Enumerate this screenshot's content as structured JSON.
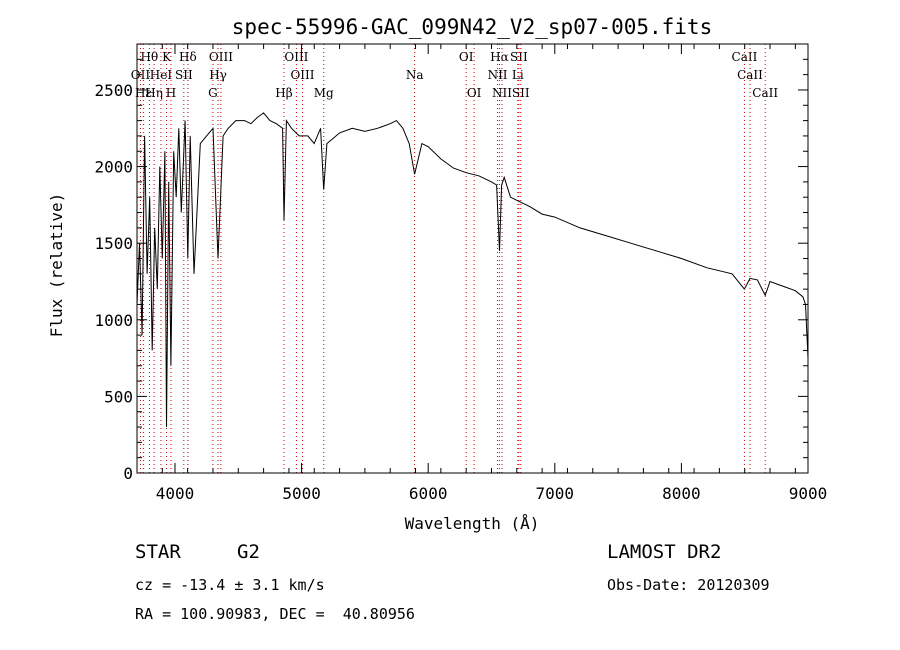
{
  "chart_data": {
    "type": "line",
    "title": "spec-55996-GAC_099N42_V2_sp07-005.fits",
    "xlabel": "Wavelength (Å)",
    "ylabel": "Flux (relative)",
    "xlim": [
      3700,
      9000
    ],
    "ylim": [
      0,
      2800
    ],
    "xticks": [
      4000,
      5000,
      6000,
      7000,
      8000,
      9000
    ],
    "yticks": [
      0,
      500,
      1000,
      1500,
      2000,
      2500
    ],
    "grid": false,
    "line_color": "#000000",
    "marker_color": "#cc0000",
    "series": [
      {
        "x": [
          3700,
          3720,
          3740,
          3760,
          3780,
          3800,
          3820,
          3840,
          3860,
          3880,
          3900,
          3920,
          3933,
          3950,
          3968,
          3990,
          4010,
          4030,
          4050,
          4080,
          4101,
          4120,
          4150,
          4200,
          4250,
          4300,
          4340,
          4380,
          4420,
          4480,
          4550,
          4600,
          4650,
          4700,
          4750,
          4800,
          4850,
          4861,
          4880,
          4920,
          4980,
          5050,
          5100,
          5150,
          5175,
          5200,
          5300,
          5400,
          5500,
          5600,
          5700,
          5750,
          5800,
          5850,
          5893,
          5950,
          6000,
          6100,
          6200,
          6300,
          6400,
          6500,
          6540,
          6563,
          6580,
          6600,
          6650,
          6700,
          6800,
          6900,
          7000,
          7200,
          7400,
          7600,
          7800,
          8000,
          8200,
          8400,
          8498,
          8542,
          8600,
          8662,
          8700,
          8800,
          8900,
          8960,
          8980,
          9000
        ],
        "y": [
          1100,
          1500,
          900,
          2200,
          1300,
          1800,
          800,
          1600,
          1200,
          2000,
          1400,
          2100,
          300,
          1900,
          700,
          2100,
          1800,
          2250,
          1700,
          2300,
          1400,
          2200,
          1300,
          2150,
          2200,
          2250,
          1400,
          2200,
          2250,
          2300,
          2300,
          2280,
          2320,
          2350,
          2300,
          2280,
          2250,
          1650,
          2300,
          2250,
          2200,
          2200,
          2150,
          2250,
          1850,
          2150,
          2220,
          2250,
          2230,
          2250,
          2280,
          2300,
          2250,
          2150,
          1950,
          2150,
          2130,
          2050,
          1990,
          1960,
          1940,
          1900,
          1880,
          1450,
          1880,
          1930,
          1800,
          1780,
          1740,
          1690,
          1670,
          1600,
          1550,
          1500,
          1450,
          1400,
          1340,
          1300,
          1200,
          1270,
          1260,
          1160,
          1250,
          1220,
          1190,
          1150,
          1100,
          750
        ]
      }
    ],
    "line_markers": [
      {
        "label": "Hθ",
        "x": 3798,
        "row": 1
      },
      {
        "label": "K",
        "x": 3934,
        "row": 1
      },
      {
        "label": "Hδ",
        "x": 4102,
        "row": 1
      },
      {
        "label": "OIII",
        "x": 4363,
        "row": 1
      },
      {
        "label": "OIII",
        "x": 4959,
        "row": 1
      },
      {
        "label": "OI",
        "x": 6300,
        "row": 1
      },
      {
        "label": "Hα",
        "x": 6563,
        "row": 1
      },
      {
        "label": "SII",
        "x": 6716,
        "row": 1
      },
      {
        "label": "CaII",
        "x": 8498,
        "row": 1
      },
      {
        "label": "OII",
        "x": 3727,
        "row": 2
      },
      {
        "label": "HeI",
        "x": 3889,
        "row": 2
      },
      {
        "label": "SII",
        "x": 4070,
        "row": 2
      },
      {
        "label": "Hγ",
        "x": 4340,
        "row": 2
      },
      {
        "label": "OIII",
        "x": 5007,
        "row": 2
      },
      {
        "label": "Na",
        "x": 5893,
        "row": 2
      },
      {
        "label": "NII",
        "x": 6548,
        "row": 2
      },
      {
        "label": "Li",
        "x": 6708,
        "row": 2
      },
      {
        "label": "CaII",
        "x": 8542,
        "row": 2
      },
      {
        "label": "Hε",
        "x": 3750,
        "row": 3
      },
      {
        "label": "Hη",
        "x": 3835,
        "row": 3
      },
      {
        "label": "H",
        "x": 3968,
        "row": 3
      },
      {
        "label": "G",
        "x": 4300,
        "row": 3
      },
      {
        "label": "Hβ",
        "x": 4861,
        "row": 3
      },
      {
        "label": "Mg",
        "x": 5175,
        "row": 3
      },
      {
        "label": "OI",
        "x": 6363,
        "row": 3
      },
      {
        "label": "NII",
        "x": 6583,
        "row": 3
      },
      {
        "label": "SII",
        "x": 6731,
        "row": 3
      },
      {
        "label": "CaII",
        "x": 8662,
        "row": 3
      }
    ]
  },
  "info": {
    "class_label": "STAR",
    "subclass": "G2",
    "survey": "LAMOST DR2",
    "velocity": "cz = -13.4 ± 3.1 km/s",
    "obs_date": "Obs-Date: 20120309",
    "coords": "RA = 100.90983, DEC =  40.80956"
  }
}
